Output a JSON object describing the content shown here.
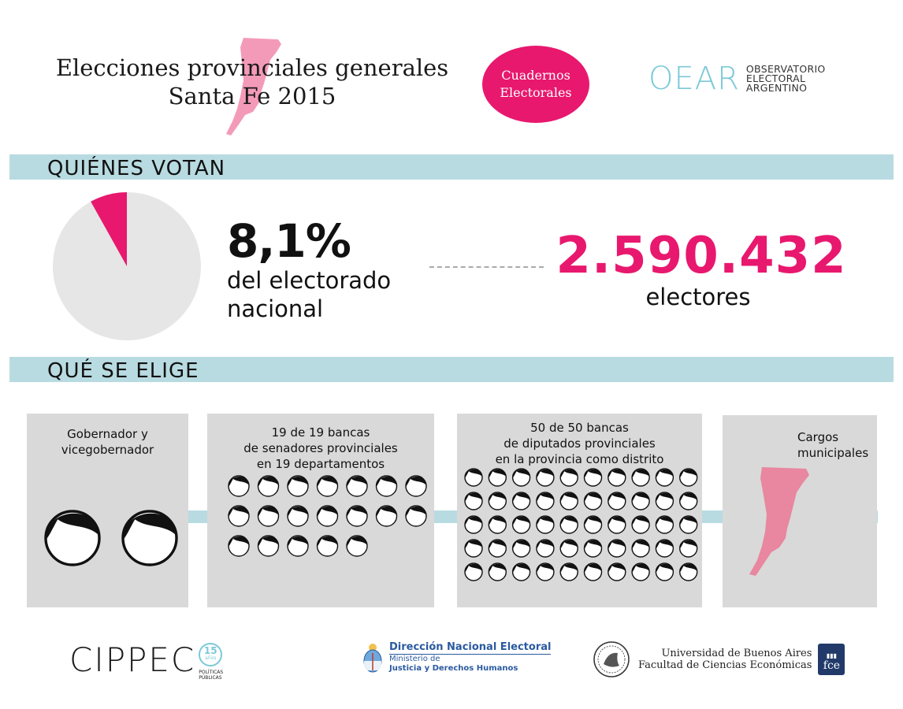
{
  "header": {
    "title_line1": "Elecciones provinciales generales",
    "title_line2": "Santa Fe 2015",
    "badge_line1": "Cuadernos",
    "badge_line2": "Electorales",
    "oear_mark": "OEAR",
    "oear_line1": "OBSERVATORIO",
    "oear_line2": "ELECTORAL",
    "oear_line3": "ARGENTINO",
    "map_color": "#f49ab9"
  },
  "quienes": {
    "section_title": "QUIÉNES VOTAN",
    "percent": "8,1%",
    "percent_desc_line1": "del electorado",
    "percent_desc_line2": "nacional",
    "electors_number": "2.590.432",
    "electors_label": "electores",
    "pie_fraction": 0.081,
    "pie_color": "#e6e6e6",
    "slice_color": "#e8186e"
  },
  "que": {
    "section_title": "QUÉ SE ELIGE",
    "box1_line1": "Gobernador y",
    "box1_line2": "vicegobernador",
    "box1_count": 2,
    "box2_line1": "19 de 19 bancas",
    "box2_line2": "de senadores provinciales",
    "box2_line3": "en 19 departamentos",
    "box2_count": 19,
    "box3_line1": "50 de 50 bancas",
    "box3_line2": "de diputados provinciales",
    "box3_line3": "en la provincia como distrito",
    "box3_count": 50,
    "box4_line1": "Cargos",
    "box4_line2": "municipales",
    "map_color": "#e8879f"
  },
  "footer": {
    "cippec_word": "CIPPEC",
    "cippec_num": "15",
    "cippec_years": "años",
    "cippec_sub1": "POLÍTICAS",
    "cippec_sub2": "PÚBLICAS",
    "dne_line1": "Dirección Nacional Electoral",
    "dne_line2": "Ministerio de",
    "dne_line3": "Justicia y Derechos Humanos",
    "uba_line1": "Universidad de Buenos Aires",
    "uba_line2": "Facultad de Ciencias Económicas",
    "fce_label": "fce"
  },
  "colors": {
    "accent": "#e8186e",
    "band": "#b8dbe1",
    "box": "#d9d9d9",
    "oear": "#7cc9d8"
  }
}
